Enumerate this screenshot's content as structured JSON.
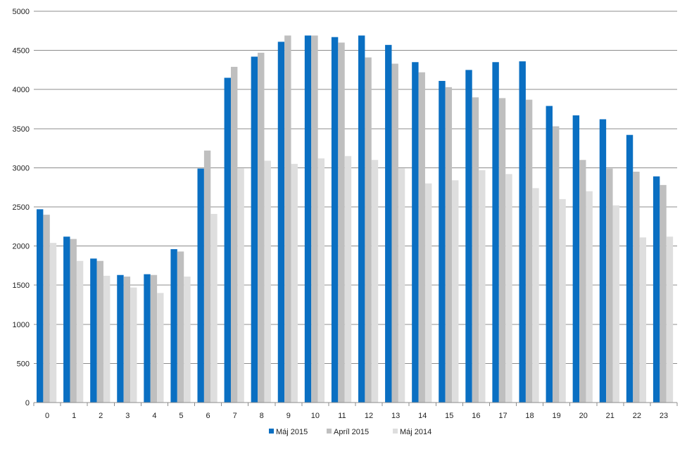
{
  "chart_data": {
    "type": "bar",
    "categories": [
      "0",
      "1",
      "2",
      "3",
      "4",
      "5",
      "6",
      "7",
      "8",
      "9",
      "10",
      "11",
      "12",
      "13",
      "14",
      "15",
      "16",
      "17",
      "18",
      "19",
      "20",
      "21",
      "22",
      "23"
    ],
    "series": [
      {
        "name": "Máj 2015",
        "color": "#0a6fc2",
        "values": [
          2470,
          2120,
          1840,
          1630,
          1640,
          1960,
          2990,
          4150,
          4420,
          4610,
          4690,
          4670,
          4690,
          4570,
          4350,
          4110,
          4250,
          4350,
          4360,
          3790,
          3670,
          3620,
          3420,
          2890
        ]
      },
      {
        "name": "Apríl 2015",
        "color": "#bfbfbf",
        "values": [
          2400,
          2090,
          1810,
          1610,
          1630,
          1930,
          3220,
          4290,
          4470,
          4690,
          4690,
          4600,
          4410,
          4330,
          4220,
          4030,
          3900,
          3890,
          3870,
          3530,
          3100,
          2990,
          2950,
          2780
        ]
      },
      {
        "name": "Máj 2014",
        "color": "#dedede",
        "values": [
          2040,
          1810,
          1620,
          1470,
          1400,
          1610,
          2410,
          2990,
          3090,
          3050,
          3120,
          3150,
          3100,
          2990,
          2800,
          2840,
          2970,
          2920,
          2740,
          2600,
          2700,
          2520,
          2110,
          2120
        ]
      }
    ],
    "ylim": [
      0,
      5000
    ],
    "yticks": [
      "0",
      "500",
      "1000",
      "1500",
      "2000",
      "2500",
      "3000",
      "3500",
      "4000",
      "4500",
      "5000"
    ],
    "grid": true,
    "legend_position": "bottom",
    "title": "",
    "xlabel": "",
    "ylabel": ""
  }
}
